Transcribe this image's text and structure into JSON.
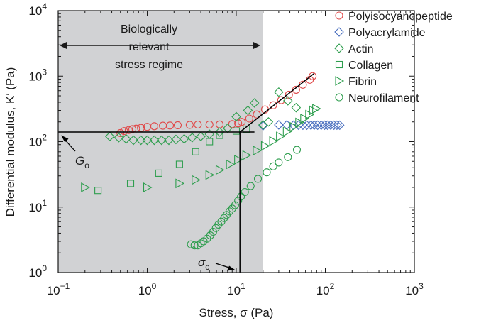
{
  "chart_data": {
    "type": "scatter",
    "xscale": "log",
    "yscale": "log",
    "xlim": [
      0.1,
      1000
    ],
    "ylim": [
      1,
      10000
    ],
    "xlabel": "Stress, σ (Pa)",
    "ylabel": "Differential modulus, K′ (Pa)",
    "x_ticks": [
      {
        "value": 0.1,
        "base": "10",
        "exp": "−1"
      },
      {
        "value": 1,
        "base": "10",
        "exp": "0"
      },
      {
        "value": 10,
        "base": "10",
        "exp": "1"
      },
      {
        "value": 100,
        "base": "10",
        "exp": "2"
      },
      {
        "value": 1000,
        "base": "10",
        "exp": "3"
      }
    ],
    "y_ticks": [
      {
        "value": 1,
        "base": "10",
        "exp": "0"
      },
      {
        "value": 10,
        "base": "10",
        "exp": "1"
      },
      {
        "value": 100,
        "base": "10",
        "exp": "2"
      },
      {
        "value": 1000,
        "base": "10",
        "exp": "3"
      },
      {
        "value": 10000,
        "base": "10",
        "exp": "4"
      }
    ],
    "shaded_region": {
      "x_range": [
        0.1,
        20
      ],
      "label_lines": [
        "Biologically",
        "relevant",
        "stress regime"
      ],
      "color": "#d1d2d4"
    },
    "annotations": {
      "g0": {
        "label": "G",
        "subscript": "o",
        "value": 140
      },
      "sigma_c": {
        "label": "σ",
        "subscript": "c",
        "value": 11
      },
      "fit_line": {
        "x": [
          11,
          75
        ],
        "y": [
          140,
          1100
        ]
      }
    },
    "series": [
      {
        "name": "Polyisocyanopeptide",
        "marker": "circle",
        "color": "#e04a4a",
        "points": [
          [
            0.5,
            135
          ],
          [
            0.55,
            145
          ],
          [
            0.62,
            150
          ],
          [
            0.68,
            155
          ],
          [
            0.75,
            158
          ],
          [
            0.85,
            162
          ],
          [
            1.0,
            168
          ],
          [
            1.2,
            172
          ],
          [
            1.5,
            175
          ],
          [
            1.8,
            176
          ],
          [
            2.2,
            178
          ],
          [
            3.0,
            180
          ],
          [
            3.7,
            182
          ],
          [
            5.0,
            182
          ],
          [
            6.5,
            183
          ],
          [
            9.0,
            185
          ],
          [
            10.5,
            190
          ],
          [
            11.5,
            200
          ],
          [
            14,
            225
          ],
          [
            17,
            260
          ],
          [
            21,
            310
          ],
          [
            26,
            360
          ],
          [
            32,
            430
          ],
          [
            39,
            520
          ],
          [
            47,
            620
          ],
          [
            56,
            740
          ],
          [
            67,
            880
          ],
          [
            72,
            1000
          ]
        ]
      },
      {
        "name": "Polyacrylamide",
        "marker": "diamond",
        "color": "#4a6fbf",
        "points": [
          [
            20,
            175
          ],
          [
            30,
            180
          ],
          [
            37,
            180
          ],
          [
            44,
            178
          ],
          [
            50,
            178
          ],
          [
            56,
            178
          ],
          [
            62,
            178
          ],
          [
            69,
            178
          ],
          [
            75,
            178
          ],
          [
            82,
            178
          ],
          [
            90,
            178
          ],
          [
            98,
            178
          ],
          [
            106,
            178
          ],
          [
            115,
            178
          ],
          [
            125,
            178
          ],
          [
            135,
            178
          ],
          [
            145,
            178
          ]
        ]
      },
      {
        "name": "Actin",
        "marker": "diamond",
        "color": "#2e9e4e",
        "points": [
          [
            0.38,
            120
          ],
          [
            0.48,
            115
          ],
          [
            0.58,
            110
          ],
          [
            0.7,
            105
          ],
          [
            0.85,
            105
          ],
          [
            1.0,
            105
          ],
          [
            1.2,
            105
          ],
          [
            1.45,
            105
          ],
          [
            1.75,
            105
          ],
          [
            2.1,
            108
          ],
          [
            2.6,
            110
          ],
          [
            3.2,
            115
          ],
          [
            4.0,
            120
          ],
          [
            5.0,
            130
          ],
          [
            6.5,
            140
          ],
          [
            8.0,
            160
          ],
          [
            10,
            240
          ],
          [
            13.5,
            300
          ],
          [
            16,
            390
          ],
          [
            20,
            180
          ],
          [
            23,
            200
          ],
          [
            30,
            570
          ],
          [
            38,
            420
          ],
          [
            47,
            330
          ]
        ]
      },
      {
        "name": "Collagen",
        "marker": "square",
        "color": "#2e9e4e",
        "points": [
          [
            0.28,
            18
          ],
          [
            0.65,
            23
          ],
          [
            1.35,
            33
          ],
          [
            2.3,
            45
          ],
          [
            3.5,
            70
          ],
          [
            5.0,
            100
          ],
          [
            6.5,
            125
          ],
          [
            10,
            145
          ],
          [
            13,
            155
          ]
        ]
      },
      {
        "name": "Fibrin",
        "marker": "triangle-right",
        "color": "#2e9e4e",
        "points": [
          [
            0.2,
            20
          ],
          [
            1.0,
            20
          ],
          [
            2.3,
            23
          ],
          [
            3.5,
            26
          ],
          [
            5.0,
            31
          ],
          [
            6.5,
            37
          ],
          [
            8.5,
            45
          ],
          [
            10.5,
            53
          ],
          [
            13,
            62
          ],
          [
            17,
            73
          ],
          [
            21,
            86
          ],
          [
            26,
            102
          ],
          [
            31,
            120
          ],
          [
            37,
            142
          ],
          [
            44,
            168
          ],
          [
            51,
            196
          ],
          [
            58,
            225
          ],
          [
            66,
            258
          ],
          [
            73,
            300
          ],
          [
            79,
            318
          ]
        ]
      },
      {
        "name": "Neurofilament",
        "marker": "circle",
        "color": "#2e9e4e",
        "points": [
          [
            3.1,
            2.7
          ],
          [
            3.4,
            2.6
          ],
          [
            3.7,
            2.6
          ],
          [
            4.0,
            2.8
          ],
          [
            4.3,
            3.0
          ],
          [
            4.7,
            3.3
          ],
          [
            5.1,
            3.7
          ],
          [
            5.5,
            4.2
          ],
          [
            5.9,
            4.8
          ],
          [
            6.3,
            5.4
          ],
          [
            6.8,
            6.0
          ],
          [
            7.3,
            6.8
          ],
          [
            7.8,
            7.6
          ],
          [
            8.4,
            8.6
          ],
          [
            9.0,
            9.5
          ],
          [
            9.7,
            10.7
          ],
          [
            10.5,
            12.5
          ],
          [
            11.3,
            14.5
          ],
          [
            12.5,
            17
          ],
          [
            14.5,
            21
          ],
          [
            17.5,
            27
          ],
          [
            22,
            34
          ],
          [
            26,
            42
          ],
          [
            30,
            48
          ],
          [
            38,
            58
          ],
          [
            48,
            75
          ]
        ]
      }
    ]
  }
}
